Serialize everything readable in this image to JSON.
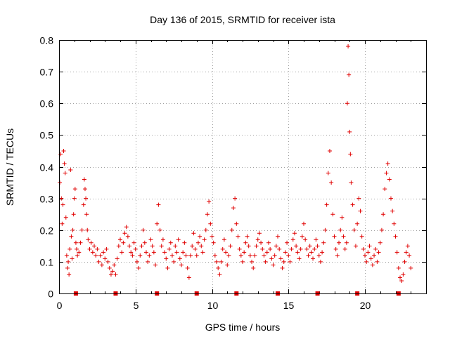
{
  "chart_data": {
    "type": "scatter",
    "title": "Day 136 of 2015, SRMTID for receiver ista",
    "xlabel": "GPS time / hours",
    "ylabel": "SRMTID / TECUs",
    "xlim": [
      0,
      24
    ],
    "ylim": [
      0,
      0.8
    ],
    "x_ticks": [
      "0",
      "5",
      "10",
      "15",
      "20"
    ],
    "x_tick_values": [
      0,
      5,
      10,
      15,
      20
    ],
    "y_ticks": [
      "0",
      "0.1",
      "0.2",
      "0.3",
      "0.4",
      "0.5",
      "0.6",
      "0.7",
      "0.8"
    ],
    "y_tick_values": [
      0,
      0.1,
      0.2,
      0.3,
      0.4,
      0.5,
      0.6,
      0.7,
      0.8
    ],
    "grid": true,
    "marker": "plus",
    "color": "#e00000",
    "series": [
      {
        "name": "SRMTID",
        "points": [
          [
            0.05,
            0.35
          ],
          [
            0.1,
            0.44
          ],
          [
            0.15,
            0.3
          ],
          [
            0.2,
            0.22
          ],
          [
            0.25,
            0.28
          ],
          [
            0.3,
            0.45
          ],
          [
            0.35,
            0.41
          ],
          [
            0.4,
            0.38
          ],
          [
            0.45,
            0.24
          ],
          [
            0.5,
            0.12
          ],
          [
            0.55,
            0.08
          ],
          [
            0.6,
            0.1
          ],
          [
            0.65,
            0.06
          ],
          [
            0.7,
            0.14
          ],
          [
            0.75,
            0.39
          ],
          [
            0.8,
            0.18
          ],
          [
            0.85,
            0.11
          ],
          [
            0.9,
            0.2
          ],
          [
            0.95,
            0.25
          ],
          [
            1.0,
            0.3
          ],
          [
            1.05,
            0.33
          ],
          [
            1.1,
            0.16
          ],
          [
            1.15,
            0.14
          ],
          [
            1.2,
            0.12
          ],
          [
            1.3,
            0.13
          ],
          [
            1.4,
            0.16
          ],
          [
            1.5,
            0.2
          ],
          [
            1.6,
            0.28
          ],
          [
            1.65,
            0.36
          ],
          [
            1.7,
            0.33
          ],
          [
            1.75,
            0.3
          ],
          [
            1.8,
            0.25
          ],
          [
            1.85,
            0.2
          ],
          [
            1.9,
            0.17
          ],
          [
            2.0,
            0.14
          ],
          [
            2.1,
            0.16
          ],
          [
            2.2,
            0.13
          ],
          [
            2.3,
            0.15
          ],
          [
            2.4,
            0.12
          ],
          [
            2.5,
            0.14
          ],
          [
            2.6,
            0.1
          ],
          [
            2.7,
            0.12
          ],
          [
            2.8,
            0.09
          ],
          [
            2.9,
            0.13
          ],
          [
            3.0,
            0.11
          ],
          [
            3.1,
            0.14
          ],
          [
            3.2,
            0.1
          ],
          [
            3.3,
            0.08
          ],
          [
            3.4,
            0.06
          ],
          [
            3.5,
            0.07
          ],
          [
            3.6,
            0.09
          ],
          [
            3.7,
            0.06
          ],
          [
            3.8,
            0.11
          ],
          [
            3.9,
            0.15
          ],
          [
            4.0,
            0.17
          ],
          [
            4.1,
            0.13
          ],
          [
            4.2,
            0.16
          ],
          [
            4.3,
            0.19
          ],
          [
            4.4,
            0.21
          ],
          [
            4.5,
            0.18
          ],
          [
            4.6,
            0.15
          ],
          [
            4.7,
            0.13
          ],
          [
            4.8,
            0.12
          ],
          [
            4.9,
            0.16
          ],
          [
            5.0,
            0.14
          ],
          [
            5.1,
            0.1
          ],
          [
            5.2,
            0.08
          ],
          [
            5.3,
            0.12
          ],
          [
            5.4,
            0.15
          ],
          [
            5.5,
            0.2
          ],
          [
            5.6,
            0.16
          ],
          [
            5.7,
            0.13
          ],
          [
            5.8,
            0.1
          ],
          [
            5.9,
            0.12
          ],
          [
            6.0,
            0.17
          ],
          [
            6.1,
            0.15
          ],
          [
            6.2,
            0.13
          ],
          [
            6.3,
            0.09
          ],
          [
            6.4,
            0.22
          ],
          [
            6.5,
            0.28
          ],
          [
            6.6,
            0.2
          ],
          [
            6.7,
            0.15
          ],
          [
            6.8,
            0.17
          ],
          [
            6.9,
            0.13
          ],
          [
            7.0,
            0.11
          ],
          [
            7.1,
            0.08
          ],
          [
            7.2,
            0.14
          ],
          [
            7.3,
            0.16
          ],
          [
            7.4,
            0.12
          ],
          [
            7.5,
            0.1
          ],
          [
            7.6,
            0.15
          ],
          [
            7.7,
            0.13
          ],
          [
            7.8,
            0.17
          ],
          [
            7.9,
            0.11
          ],
          [
            8.0,
            0.09
          ],
          [
            8.1,
            0.13
          ],
          [
            8.2,
            0.16
          ],
          [
            8.3,
            0.12
          ],
          [
            8.4,
            0.08
          ],
          [
            8.5,
            0.05
          ],
          [
            8.6,
            0.12
          ],
          [
            8.7,
            0.15
          ],
          [
            8.8,
            0.19
          ],
          [
            8.9,
            0.14
          ],
          [
            9.0,
            0.12
          ],
          [
            9.1,
            0.16
          ],
          [
            9.2,
            0.18
          ],
          [
            9.3,
            0.15
          ],
          [
            9.4,
            0.13
          ],
          [
            9.5,
            0.17
          ],
          [
            9.6,
            0.2
          ],
          [
            9.7,
            0.25
          ],
          [
            9.8,
            0.29
          ],
          [
            9.9,
            0.22
          ],
          [
            10.0,
            0.18
          ],
          [
            10.1,
            0.16
          ],
          [
            10.2,
            0.12
          ],
          [
            10.3,
            0.1
          ],
          [
            10.4,
            0.08
          ],
          [
            10.5,
            0.06
          ],
          [
            10.6,
            0.1
          ],
          [
            10.7,
            0.14
          ],
          [
            10.8,
            0.17
          ],
          [
            10.9,
            0.13
          ],
          [
            11.0,
            0.09
          ],
          [
            11.1,
            0.12
          ],
          [
            11.2,
            0.15
          ],
          [
            11.3,
            0.2
          ],
          [
            11.4,
            0.27
          ],
          [
            11.5,
            0.3
          ],
          [
            11.6,
            0.22
          ],
          [
            11.7,
            0.18
          ],
          [
            11.8,
            0.14
          ],
          [
            11.9,
            0.12
          ],
          [
            12.0,
            0.1
          ],
          [
            12.1,
            0.13
          ],
          [
            12.2,
            0.16
          ],
          [
            12.3,
            0.18
          ],
          [
            12.4,
            0.15
          ],
          [
            12.5,
            0.12
          ],
          [
            12.6,
            0.1
          ],
          [
            12.7,
            0.08
          ],
          [
            12.8,
            0.12
          ],
          [
            12.9,
            0.15
          ],
          [
            13.0,
            0.17
          ],
          [
            13.1,
            0.19
          ],
          [
            13.2,
            0.16
          ],
          [
            13.3,
            0.14
          ],
          [
            13.4,
            0.12
          ],
          [
            13.5,
            0.1
          ],
          [
            13.6,
            0.13
          ],
          [
            13.7,
            0.16
          ],
          [
            13.8,
            0.14
          ],
          [
            13.9,
            0.11
          ],
          [
            14.0,
            0.09
          ],
          [
            14.1,
            0.12
          ],
          [
            14.2,
            0.15
          ],
          [
            14.3,
            0.18
          ],
          [
            14.4,
            0.14
          ],
          [
            14.5,
            0.11
          ],
          [
            14.6,
            0.08
          ],
          [
            14.7,
            0.1
          ],
          [
            14.8,
            0.13
          ],
          [
            14.9,
            0.16
          ],
          [
            15.0,
            0.12
          ],
          [
            15.1,
            0.1
          ],
          [
            15.2,
            0.14
          ],
          [
            15.3,
            0.17
          ],
          [
            15.4,
            0.19
          ],
          [
            15.5,
            0.15
          ],
          [
            15.6,
            0.13
          ],
          [
            15.7,
            0.11
          ],
          [
            15.8,
            0.14
          ],
          [
            15.9,
            0.18
          ],
          [
            16.0,
            0.22
          ],
          [
            16.1,
            0.17
          ],
          [
            16.2,
            0.14
          ],
          [
            16.3,
            0.12
          ],
          [
            16.4,
            0.15
          ],
          [
            16.5,
            0.13
          ],
          [
            16.6,
            0.11
          ],
          [
            16.7,
            0.14
          ],
          [
            16.8,
            0.17
          ],
          [
            16.9,
            0.15
          ],
          [
            17.0,
            0.12
          ],
          [
            17.1,
            0.1
          ],
          [
            17.2,
            0.13
          ],
          [
            17.3,
            0.16
          ],
          [
            17.4,
            0.2
          ],
          [
            17.5,
            0.28
          ],
          [
            17.6,
            0.38
          ],
          [
            17.7,
            0.45
          ],
          [
            17.8,
            0.35
          ],
          [
            17.9,
            0.25
          ],
          [
            18.0,
            0.18
          ],
          [
            18.1,
            0.14
          ],
          [
            18.2,
            0.12
          ],
          [
            18.3,
            0.16
          ],
          [
            18.4,
            0.2
          ],
          [
            18.5,
            0.24
          ],
          [
            18.6,
            0.18
          ],
          [
            18.7,
            0.14
          ],
          [
            18.8,
            0.16
          ],
          [
            18.85,
            0.6
          ],
          [
            18.9,
            0.78
          ],
          [
            18.95,
            0.69
          ],
          [
            19.0,
            0.51
          ],
          [
            19.05,
            0.44
          ],
          [
            19.1,
            0.35
          ],
          [
            19.2,
            0.28
          ],
          [
            19.3,
            0.2
          ],
          [
            19.4,
            0.15
          ],
          [
            19.5,
            0.22
          ],
          [
            19.6,
            0.3
          ],
          [
            19.7,
            0.26
          ],
          [
            19.8,
            0.18
          ],
          [
            19.9,
            0.14
          ],
          [
            20.0,
            0.12
          ],
          [
            20.1,
            0.1
          ],
          [
            20.2,
            0.13
          ],
          [
            20.3,
            0.15
          ],
          [
            20.4,
            0.11
          ],
          [
            20.5,
            0.09
          ],
          [
            20.6,
            0.12
          ],
          [
            20.7,
            0.14
          ],
          [
            20.8,
            0.1
          ],
          [
            20.9,
            0.13
          ],
          [
            21.0,
            0.16
          ],
          [
            21.1,
            0.2
          ],
          [
            21.2,
            0.25
          ],
          [
            21.3,
            0.33
          ],
          [
            21.4,
            0.38
          ],
          [
            21.5,
            0.41
          ],
          [
            21.6,
            0.36
          ],
          [
            21.7,
            0.3
          ],
          [
            21.8,
            0.26
          ],
          [
            21.9,
            0.22
          ],
          [
            22.0,
            0.18
          ],
          [
            22.1,
            0.13
          ],
          [
            22.2,
            0.08
          ],
          [
            22.3,
            0.05
          ],
          [
            22.4,
            0.04
          ],
          [
            22.5,
            0.06
          ],
          [
            22.6,
            0.1
          ],
          [
            22.7,
            0.13
          ],
          [
            22.8,
            0.15
          ],
          [
            22.9,
            0.12
          ],
          [
            23.0,
            0.08
          ]
        ]
      }
    ],
    "baseline_markers_x": [
      1.1,
      3.7,
      6.4,
      9.0,
      11.6,
      14.3,
      16.9,
      19.5,
      22.2
    ]
  }
}
